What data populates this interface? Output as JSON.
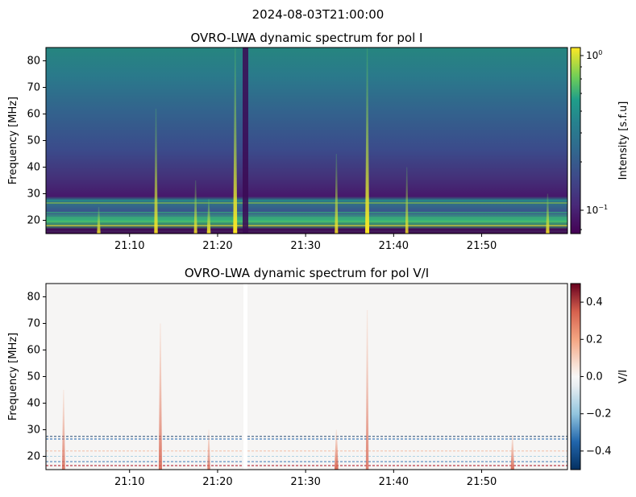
{
  "suptitle": "2024-08-03T21:00:00",
  "chart_data": [
    {
      "type": "heatmap",
      "title": "OVRO-LWA dynamic spectrum for pol I",
      "xlabel": "",
      "ylabel": "Frequency [MHz]",
      "x_ticks": [
        "21:10",
        "21:20",
        "21:30",
        "21:40",
        "21:50"
      ],
      "y_ticks": [
        20,
        30,
        40,
        50,
        60,
        70,
        80
      ],
      "xlim": [
        "21:00:30",
        "21:59:45"
      ],
      "ylim": [
        15,
        85
      ],
      "colormap": "viridis",
      "color_scale": "log",
      "colorbar_label": "Intensity [s.f.u]",
      "colorbar_range": [
        0.07,
        1.1
      ],
      "colorbar_ticks": [
        "10^-1",
        "10^0"
      ],
      "bursts": [
        {
          "time": "21:06:30",
          "freq_top": 25,
          "strength": 0.8
        },
        {
          "time": "21:13:00",
          "freq_top": 62,
          "strength": 0.8
        },
        {
          "time": "21:17:30",
          "freq_top": 35,
          "strength": 0.7
        },
        {
          "time": "21:19:00",
          "freq_top": 28,
          "strength": 0.9
        },
        {
          "time": "21:22:00",
          "freq_top": 85,
          "strength": 1.0
        },
        {
          "time": "21:33:30",
          "freq_top": 45,
          "strength": 0.7
        },
        {
          "time": "21:37:00",
          "freq_top": 85,
          "strength": 1.0
        },
        {
          "time": "21:41:30",
          "freq_top": 40,
          "strength": 0.6
        },
        {
          "time": "21:57:30",
          "freq_top": 30,
          "strength": 0.8
        }
      ]
    },
    {
      "type": "heatmap",
      "title": "OVRO-LWA dynamic spectrum for pol V/I",
      "xlabel": "",
      "ylabel": "Frequency [MHz]",
      "x_ticks": [
        "21:10",
        "21:20",
        "21:30",
        "21:40",
        "21:50"
      ],
      "y_ticks": [
        20,
        30,
        40,
        50,
        60,
        70,
        80
      ],
      "xlim": [
        "21:00:30",
        "21:59:45"
      ],
      "ylim": [
        15,
        85
      ],
      "colormap": "RdBu_r",
      "color_scale": "linear",
      "colorbar_label": "V/I",
      "colorbar_range": [
        -0.5,
        0.5
      ],
      "colorbar_ticks": [
        "0.4",
        "0.2",
        "0.0",
        "−0.2",
        "−0.4"
      ],
      "bursts": [
        {
          "time": "21:02:30",
          "freq_top": 45,
          "strength": 0.6
        },
        {
          "time": "21:13:30",
          "freq_top": 70,
          "strength": 0.7
        },
        {
          "time": "21:19:00",
          "freq_top": 30,
          "strength": 0.5
        },
        {
          "time": "21:33:30",
          "freq_top": 30,
          "strength": 0.9
        },
        {
          "time": "21:37:00",
          "freq_top": 75,
          "strength": 0.5
        },
        {
          "time": "21:53:30",
          "freq_top": 28,
          "strength": 0.8
        }
      ]
    }
  ]
}
